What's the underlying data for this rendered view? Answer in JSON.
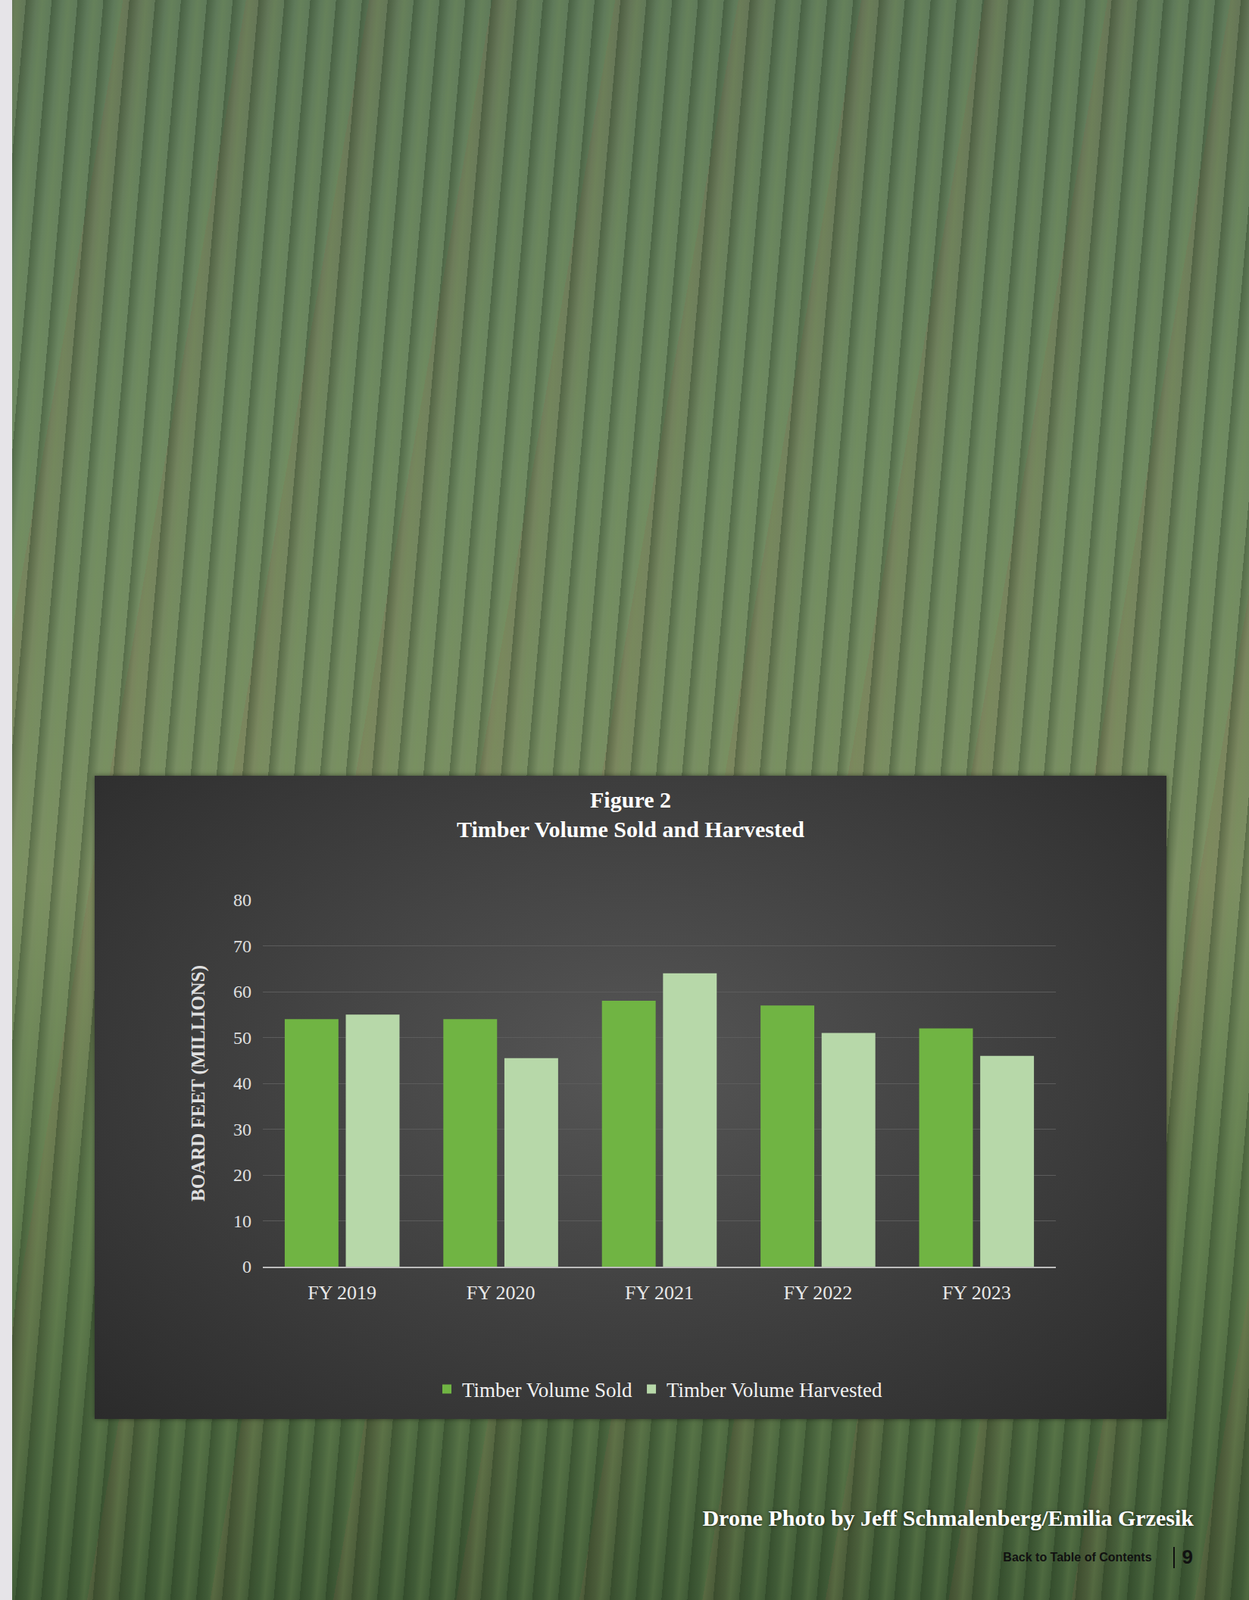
{
  "chart_data": {
    "type": "bar",
    "title": "Figure 2",
    "subtitle": "Timber Volume Sold and Harvested",
    "y_label": "BOARD FEET (MILLIONS)",
    "categories": [
      "FY 2019",
      "FY 2020",
      "FY 2021",
      "FY 2022",
      "FY 2023"
    ],
    "series": [
      {
        "name": "Timber Volume Sold",
        "color": "#70b443",
        "values": [
          54,
          54,
          58,
          57,
          52
        ]
      },
      {
        "name": "Timber Volume Harvested",
        "color": "#b7d8a9",
        "values": [
          55,
          45.5,
          64,
          51,
          46
        ]
      }
    ],
    "ylim": [
      0,
      80
    ],
    "yticks": [
      0,
      10,
      20,
      30,
      40,
      50,
      60,
      70,
      80
    ],
    "grid": true,
    "legend": "bottom"
  },
  "photo_credit": "Drone Photo by Jeff Schmalenberg/Emilia Grzesik",
  "footer": {
    "link": "Back to Table of Contents",
    "page_number": 9
  }
}
